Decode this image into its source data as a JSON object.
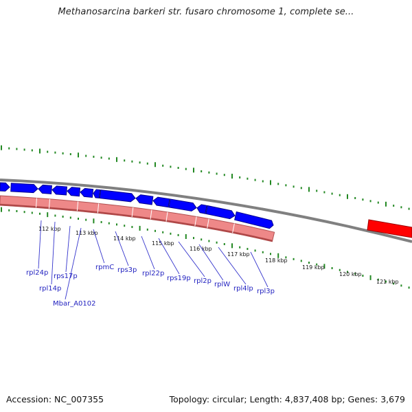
{
  "title": "Methanosarcina barkeri str. fusaro chromosome 1, complete se...",
  "footer": {
    "accession": "Accession: NC_007355",
    "topology": "Topology: circular; Length: 4,837,408 bp; Genes: 3,679"
  },
  "colors": {
    "forward_gene": "#0000ff",
    "reverse_gene": "#ee8888",
    "highlight_gene": "#ff0000",
    "backbone": "#808080",
    "gc_ticks": "#228822",
    "label": "#1f1fbf",
    "leader": "#3333cc"
  },
  "scale_ticks": [
    "112 kbp",
    "113 kbp",
    "114 kbp",
    "115 kbp",
    "116 kbp",
    "117 kbp",
    "118 kbp",
    "119 kbp",
    "120 kbp",
    "121 kbp"
  ],
  "gene_labels": [
    "rpl24p",
    "rpl14p",
    "rps17p",
    "Mbar_A0102",
    "rpmC",
    "rps3p",
    "rpl22p",
    "rps19p",
    "rpl2p",
    "rplW",
    "rpl4lp",
    "rpl3p"
  ]
}
